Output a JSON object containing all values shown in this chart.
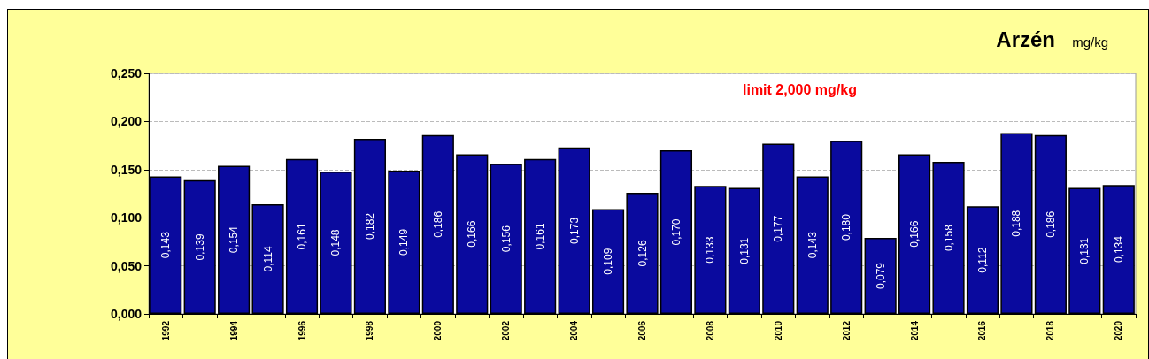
{
  "chart_data": {
    "type": "bar",
    "title": "Arzén",
    "subtitle": "mg/kg",
    "categories": [
      "1992",
      null,
      "1994",
      null,
      "1996",
      null,
      "1998",
      null,
      "2000",
      null,
      "2002",
      null,
      "2004",
      null,
      "2006",
      null,
      "2008",
      null,
      "2010",
      null,
      "2012",
      null,
      "2014",
      null,
      "2016",
      null,
      "2018",
      null,
      "2020"
    ],
    "values": [
      0.143,
      0.139,
      0.154,
      0.114,
      0.161,
      0.148,
      0.182,
      0.149,
      0.186,
      0.166,
      0.156,
      0.161,
      0.173,
      0.109,
      0.126,
      0.17,
      0.133,
      0.131,
      0.177,
      0.143,
      0.18,
      0.079,
      0.166,
      0.158,
      0.112,
      0.188,
      0.186,
      0.131,
      0.134
    ],
    "color": "#0a0a9e",
    "ylim": [
      0,
      0.25
    ],
    "yticks": [
      {
        "value": 0,
        "label": "0,000"
      },
      {
        "value": 0.05,
        "label": "0,050"
      },
      {
        "value": 0.1,
        "label": "0,100"
      },
      {
        "value": 0.15,
        "label": "0,150"
      },
      {
        "value": 0.2,
        "label": "0,200"
      },
      {
        "value": 0.25,
        "label": "0,250"
      }
    ],
    "grid": "y",
    "value_labels": [
      "0,143",
      "0,139",
      "0,154",
      "0,114",
      "0,161",
      "0,148",
      "0,182",
      "0,149",
      "0,186",
      "0,166",
      "0,156",
      "0,161",
      "0,173",
      "0,109",
      "0,126",
      "0,170",
      "0,133",
      "0,131",
      "0,177",
      "0,143",
      "0,180",
      "0,079",
      "0,166",
      "0,158",
      "0,112",
      "0,188",
      "0,186",
      "0,131",
      "0,134"
    ],
    "annotations": [
      "limit 2,000 mg/kg"
    ]
  }
}
